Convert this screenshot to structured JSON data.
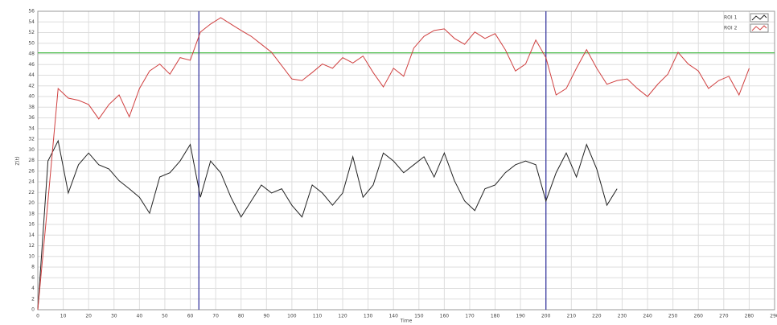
{
  "chart_data": {
    "type": "line",
    "y_label": "Z(t)",
    "x_label": "Time",
    "xlim": [
      0,
      290
    ],
    "ylim": [
      0,
      56
    ],
    "xticks": [
      0,
      10,
      20,
      30,
      40,
      50,
      60,
      70,
      80,
      90,
      100,
      110,
      120,
      130,
      140,
      150,
      160,
      170,
      180,
      190,
      200,
      210,
      220,
      230,
      240,
      250,
      260,
      270,
      280,
      290
    ],
    "yticks": [
      0,
      2,
      4,
      6,
      8,
      10,
      12,
      14,
      16,
      18,
      20,
      22,
      24,
      26,
      28,
      30,
      32,
      34,
      36,
      38,
      40,
      42,
      44,
      46,
      48,
      50,
      52,
      54,
      56
    ],
    "grid": true,
    "legend": "upper right",
    "threshold": {
      "value": 48.2,
      "color": "#3cb83c"
    },
    "cursors": {
      "color": "#3a3aa0",
      "x": [
        63.4,
        200
      ]
    },
    "series": [
      {
        "name": "ROI 1",
        "color": "#222222",
        "x": [
          0,
          4,
          8,
          12,
          16,
          20,
          24,
          28,
          32,
          36,
          40,
          44,
          48,
          52,
          56,
          60,
          64,
          68,
          72,
          76,
          80,
          84,
          88,
          92,
          96,
          100,
          104,
          108,
          112,
          116,
          120,
          124,
          128,
          132,
          136,
          140,
          144,
          148,
          152,
          156,
          160,
          164,
          168,
          172,
          176,
          180,
          184,
          188,
          192,
          196,
          200,
          204,
          208,
          212,
          216,
          220,
          224,
          228
        ],
        "values": [
          0,
          27.9,
          31.7,
          21.9,
          27.2,
          29.4,
          27.2,
          26.4,
          24.2,
          22.7,
          21.1,
          18.1,
          24.9,
          25.7,
          27.9,
          31.0,
          21.1,
          27.9,
          25.7,
          21.1,
          17.4,
          20.4,
          23.4,
          21.9,
          22.7,
          19.6,
          17.4,
          23.4,
          21.9,
          19.6,
          21.9,
          28.7,
          21.1,
          23.4,
          29.4,
          27.9,
          25.7,
          27.2,
          28.7,
          24.9,
          29.4,
          24.2,
          20.4,
          18.6,
          22.7,
          23.4,
          25.7,
          27.2,
          27.9,
          27.2,
          20.4,
          25.7,
          29.4,
          24.9,
          31.0,
          26.4,
          19.6,
          22.7
        ]
      },
      {
        "name": "ROI 2",
        "color": "#d04040",
        "x": [
          0,
          4,
          8,
          12,
          16,
          20,
          24,
          28,
          32,
          36,
          40,
          44,
          48,
          52,
          56,
          60,
          64,
          68,
          72,
          76,
          80,
          84,
          88,
          92,
          96,
          100,
          104,
          108,
          112,
          116,
          120,
          124,
          128,
          132,
          136,
          140,
          144,
          148,
          152,
          156,
          160,
          164,
          168,
          172,
          176,
          180,
          184,
          188,
          192,
          196,
          200,
          204,
          208,
          212,
          216,
          220,
          224,
          228,
          232,
          236,
          240,
          244,
          248,
          252,
          256,
          260,
          264,
          268,
          272,
          276,
          280
        ],
        "values": [
          0,
          20.4,
          41.5,
          39.7,
          39.3,
          38.5,
          35.8,
          38.5,
          40.3,
          36.2,
          41.5,
          44.8,
          46.1,
          44.2,
          47.3,
          46.8,
          52.1,
          53.6,
          54.8,
          53.6,
          52.4,
          51.3,
          49.8,
          48.3,
          45.8,
          43.3,
          43.0,
          44.5,
          46.1,
          45.3,
          47.3,
          46.3,
          47.6,
          44.5,
          41.8,
          45.3,
          43.8,
          49.1,
          51.3,
          52.4,
          52.7,
          50.9,
          49.8,
          52.1,
          50.9,
          51.8,
          48.8,
          44.8,
          46.1,
          50.6,
          47.3,
          40.3,
          41.5,
          45.3,
          48.8,
          45.3,
          42.3,
          43.0,
          43.3,
          41.5,
          40.0,
          42.3,
          44.2,
          48.3,
          46.1,
          44.8,
          41.5,
          43.0,
          43.8,
          40.3,
          45.3
        ]
      }
    ]
  }
}
